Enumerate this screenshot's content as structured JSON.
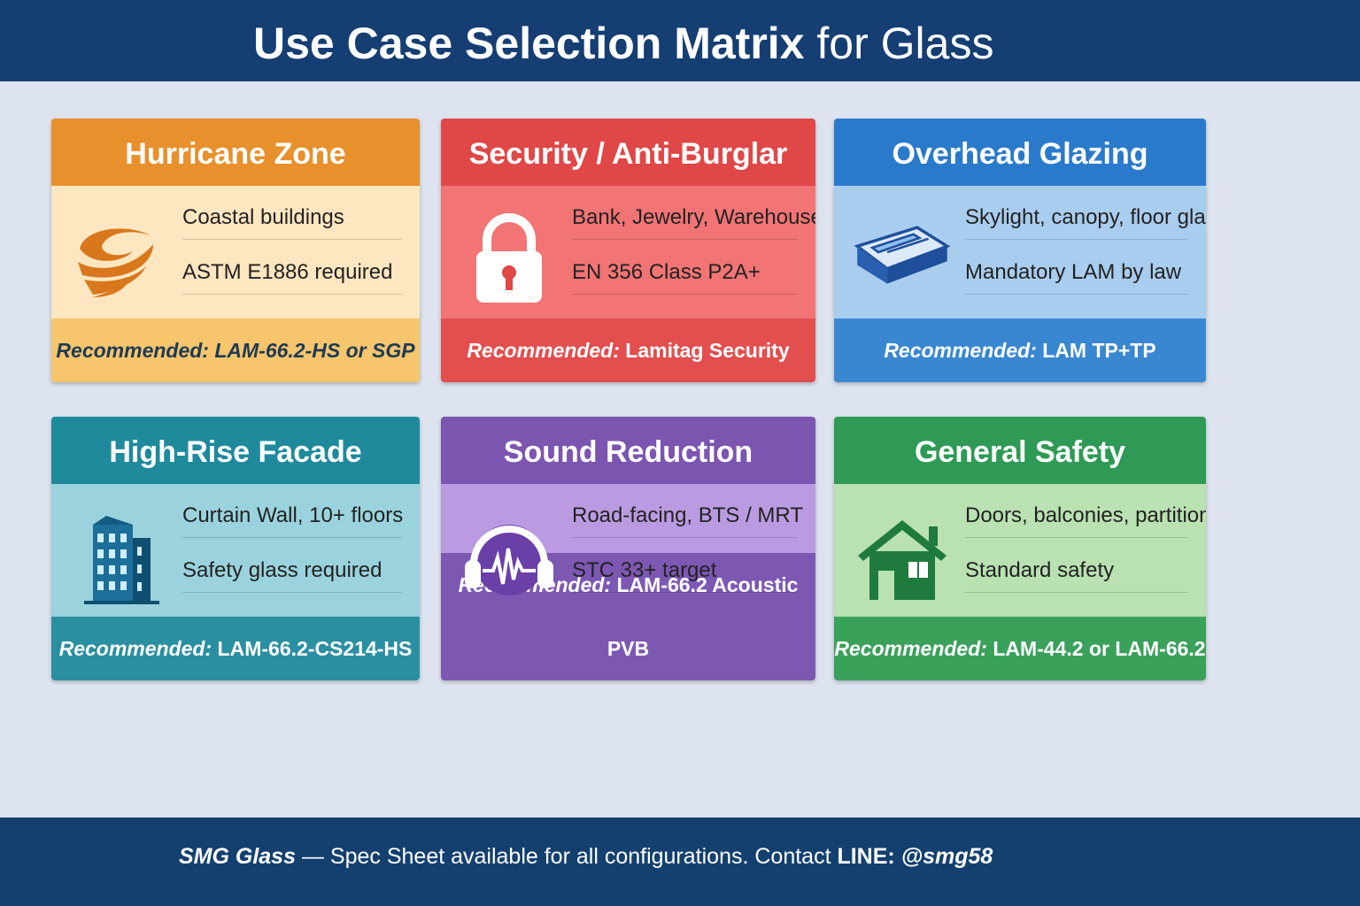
{
  "header": {
    "title_bold": "Use Case Selection Matrix",
    "title_rest": " for Glass"
  },
  "cards": [
    {
      "title": "Hurricane Zone",
      "line1": "Coastal buildings",
      "line2": "ASTM E1886 required",
      "rec_label": "Recommended:",
      "rec_value": "LAM-66.2-HS or SGP",
      "icon": "hurricane-icon",
      "colors": {
        "header": "#e8902c",
        "body": "#fde6c0",
        "footer": "#f6c56c",
        "footer_text": "#1d3a55"
      }
    },
    {
      "title": "Security / Anti-Burglar",
      "line1": "Bank, Jewelry, Warehouse",
      "line2": "EN 356 Class P2A+",
      "rec_label": "Recommended:",
      "rec_value": "Lamitag Security",
      "icon": "padlock-icon",
      "colors": {
        "header": "#e04747",
        "body": "#f27474",
        "footer": "#e34e4e",
        "footer_text": "#ffffff"
      }
    },
    {
      "title": "Overhead Glazing",
      "line1": "Skylight, canopy, floor glass",
      "line2": "Mandatory LAM by law",
      "rec_label": "Recommended:",
      "rec_value": "LAM TP+TP",
      "icon": "skylight-icon",
      "colors": {
        "header": "#2a7acb",
        "body": "#a9cdef",
        "footer": "#3a87d1",
        "footer_text": "#ffffff"
      }
    },
    {
      "title": "High-Rise Facade",
      "line1": "Curtain Wall, 10+ floors",
      "line2": "Safety glass required",
      "rec_label": "Recommended:",
      "rec_value": "LAM-66.2-CS214-HS",
      "icon": "building-icon",
      "colors": {
        "header": "#1e8a9c",
        "body": "#9ad3dd",
        "footer": "#2a8fa1",
        "footer_text": "#ffffff"
      }
    },
    {
      "title": "Sound Reduction",
      "line1": "Road-facing, BTS / MRT",
      "line2": "STC 33+ target",
      "rec_label": "Recommended:",
      "rec_value": "LAM-66.2 Acoustic PVB",
      "icon": "headphones-icon",
      "colors": {
        "header": "#7b55b0",
        "body": "#ba9be1",
        "footer": "#7d58b3",
        "footer_text": "#ffffff"
      }
    },
    {
      "title": "General Safety",
      "line1": "Doors, balconies, partitions",
      "line2": "Standard safety",
      "rec_label": "Recommended:",
      "rec_value": "LAM-44.2 or LAM-66.2",
      "icon": "house-icon",
      "colors": {
        "header": "#2e9a55",
        "body": "#b9e1b1",
        "footer": "#3aa15b",
        "footer_text": "#ffffff"
      }
    }
  ],
  "footer": {
    "brand": "SMG Glass",
    "dash": " — ",
    "text": "Spec Sheet available for all configurations. Contact ",
    "line_label": "LINE: ",
    "handle": "@smg58"
  }
}
